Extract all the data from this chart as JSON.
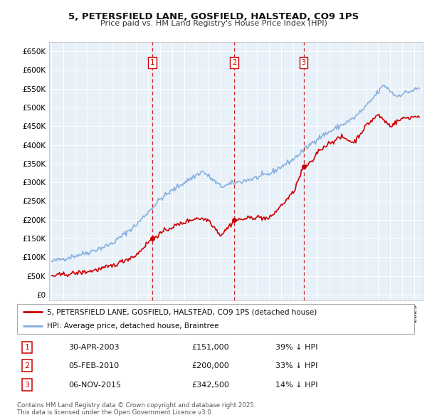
{
  "title": "5, PETERSFIELD LANE, GOSFIELD, HALSTEAD, CO9 1PS",
  "subtitle": "Price paid vs. HM Land Registry's House Price Index (HPI)",
  "yticks": [
    0,
    50000,
    100000,
    150000,
    200000,
    250000,
    300000,
    350000,
    400000,
    450000,
    500000,
    550000,
    600000,
    650000
  ],
  "sales": [
    {
      "num": 1,
      "date": "30-APR-2003",
      "price": 151000,
      "year": 2003.33,
      "label": "39% ↓ HPI"
    },
    {
      "num": 2,
      "date": "05-FEB-2010",
      "price": 200000,
      "year": 2010.1,
      "label": "33% ↓ HPI"
    },
    {
      "num": 3,
      "date": "06-NOV-2015",
      "price": 342500,
      "year": 2015.85,
      "label": "14% ↓ HPI"
    }
  ],
  "legend_line1": "5, PETERSFIELD LANE, GOSFIELD, HALSTEAD, CO9 1PS (detached house)",
  "legend_line2": "HPI: Average price, detached house, Braintree",
  "footer1": "Contains HM Land Registry data © Crown copyright and database right 2025.",
  "footer2": "This data is licensed under the Open Government Licence v3.0.",
  "red_color": "#cc0000",
  "blue_color": "#7faadd",
  "plot_bg": "#e8f0f8"
}
